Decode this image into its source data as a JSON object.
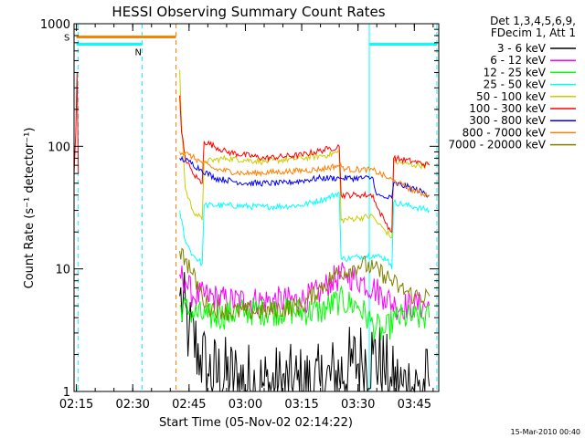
{
  "chart_data": {
    "type": "line",
    "title": "HESSI Observing Summary Count Rates",
    "xlabel": "Start Time (05-Nov-02 02:14:22)",
    "ylabel": "Count Rate (s⁻¹ detector⁻¹)",
    "ylog": true,
    "xlim": [
      "02:14:22",
      "03:51:30"
    ],
    "ylim": [
      1,
      1000
    ],
    "xticks": [
      "02:15",
      "02:30",
      "02:45",
      "03:00",
      "03:15",
      "03:30",
      "03:45"
    ],
    "yticks": [
      "1",
      "10",
      "100",
      "1000"
    ],
    "grid": false,
    "legend_position": "top-right",
    "legend_header": [
      "Det 1,3,4,5,6,9,",
      "FDecim 1, Att 1"
    ],
    "timestamp": "15-Mar-2010 00:40",
    "series": [
      {
        "name": "3 - 6 keV",
        "color": "#000000",
        "x": [
          "02:42:30",
          "02:45:00",
          "02:48:00",
          "02:50:00",
          "03:05:00",
          "03:20:00",
          "03:28:00",
          "03:31:00",
          "03:34:00",
          "03:37:00",
          "03:39:00",
          "03:42:00",
          "03:46:00",
          "03:49:00"
        ],
        "y": [
          6,
          3,
          2,
          1.4,
          1.1,
          1.1,
          1.6,
          1.8,
          2.0,
          1.5,
          1.1,
          1.1,
          1.1,
          1.1
        ]
      },
      {
        "name": "6 - 12 keV",
        "color": "#ff00ff",
        "x": [
          "02:42:30",
          "02:44:00",
          "02:46:00",
          "02:50:00",
          "02:55:00",
          "03:05:00",
          "03:15:00",
          "03:20:00",
          "03:23:00",
          "03:27:00",
          "03:31:00",
          "03:34:00",
          "03:37:00",
          "03:40:00",
          "03:45:00",
          "03:49:00"
        ],
        "y": [
          9,
          8,
          6,
          6,
          5.5,
          5.5,
          5.5,
          6.5,
          8,
          9,
          8,
          7,
          6,
          5,
          5,
          5
        ]
      },
      {
        "name": "12 - 25 keV",
        "color": "#00ff00",
        "x": [
          "02:42:30",
          "02:45:00",
          "02:50:00",
          "03:00:00",
          "03:10:00",
          "03:20:00",
          "03:25:00",
          "03:30:00",
          "03:34:00",
          "03:37:00",
          "03:40:00",
          "03:45:00",
          "03:49:00"
        ],
        "y": [
          5,
          4.5,
          4,
          4.5,
          4.5,
          4.5,
          5.5,
          5,
          3.5,
          3,
          4,
          4,
          4
        ]
      },
      {
        "name": "25 - 50 keV",
        "color": "#00ffff",
        "x": [
          "02:42:30",
          "02:44:00",
          "02:46:00",
          "02:48:30",
          "02:49:00",
          "02:55:00",
          "03:05:00",
          "03:15:00",
          "03:22:00",
          "03:25:00",
          "03:25:30",
          "03:30:00",
          "03:34:00",
          "03:38:00",
          "03:39:00",
          "03:39:30",
          "03:45:00",
          "03:49:00"
        ],
        "y": [
          30,
          17,
          13,
          11,
          33,
          33,
          32,
          33,
          38,
          42,
          12,
          12.5,
          13,
          12,
          10,
          35,
          32,
          30
        ]
      },
      {
        "name": "50 - 100 keV",
        "color": "#cccc00",
        "x": [
          "02:42:30",
          "02:43:00",
          "02:44:00",
          "02:46:00",
          "02:48:30",
          "02:49:00",
          "02:55:00",
          "03:05:00",
          "03:15:00",
          "03:22:00",
          "03:25:00",
          "03:25:30",
          "03:30:00",
          "03:34:00",
          "03:35:00",
          "03:37:00",
          "03:39:00",
          "03:39:30",
          "03:45:00",
          "03:49:00"
        ],
        "y": [
          420,
          150,
          45,
          30,
          25,
          75,
          80,
          75,
          80,
          85,
          90,
          25,
          26,
          27,
          24,
          21,
          18,
          75,
          70,
          70
        ]
      },
      {
        "name": "100 - 300 keV",
        "color": "#ff0000",
        "x": [
          "02:42:30",
          "02:43:00",
          "02:44:00",
          "02:46:00",
          "02:48:30",
          "02:49:00",
          "02:55:00",
          "03:05:00",
          "03:15:00",
          "03:22:00",
          "03:25:00",
          "03:25:30",
          "03:30:00",
          "03:34:00",
          "03:35:00",
          "03:37:00",
          "03:39:00",
          "03:39:30",
          "03:45:00",
          "03:49:00"
        ],
        "y": [
          260,
          130,
          80,
          60,
          50,
          110,
          90,
          80,
          85,
          95,
          100,
          40,
          40,
          40,
          32,
          25,
          20,
          80,
          75,
          70
        ]
      },
      {
        "name": "300 - 800 keV",
        "color": "#0000ff",
        "x": [
          "02:42:30",
          "02:45:00",
          "02:48:00",
          "02:52:00",
          "03:00:00",
          "03:10:00",
          "03:20:00",
          "03:25:00",
          "03:25:30",
          "03:34:00",
          "03:35:00",
          "03:37:00",
          "03:39:00",
          "03:39:30",
          "03:45:00",
          "03:49:00"
        ],
        "y": [
          80,
          75,
          65,
          55,
          50,
          50,
          55,
          55,
          55,
          55,
          40,
          38,
          38,
          50,
          45,
          40
        ]
      },
      {
        "name": "800 - 7000 keV",
        "color": "#ff8000",
        "x": [
          "02:42:30",
          "02:45:00",
          "02:48:00",
          "02:52:00",
          "03:00:00",
          "03:10:00",
          "03:20:00",
          "03:25:00",
          "03:27:00",
          "03:34:00",
          "03:38:00",
          "03:42:00",
          "03:46:00",
          "03:49:00"
        ],
        "y": [
          90,
          85,
          75,
          65,
          60,
          62,
          65,
          70,
          65,
          64,
          55,
          48,
          42,
          40
        ]
      },
      {
        "name": "7000 - 20000 keV",
        "color": "#808000",
        "x": [
          "02:42:30",
          "02:44:00",
          "02:46:00",
          "02:48:30",
          "02:50:00",
          "02:55:00",
          "03:05:00",
          "03:15:00",
          "03:20:00",
          "03:24:00",
          "03:28:00",
          "03:31:00",
          "03:34:00",
          "03:37:00",
          "03:41:00",
          "03:45:00",
          "03:49:00"
        ],
        "y": [
          14,
          12,
          9,
          6,
          5,
          4.5,
          4.5,
          5,
          7,
          9,
          10,
          11,
          10,
          9,
          7,
          6,
          6
        ]
      }
    ],
    "flag_bars": [
      {
        "label": "S",
        "color": "#ff8000",
        "value": 780,
        "segments": [
          [
            "02:15:00",
            "02:41:30"
          ]
        ]
      },
      {
        "label": "N",
        "color": "#00ffff",
        "value": 680,
        "segments": [
          [
            "02:15:00",
            "02:32:30"
          ],
          [
            "03:33:00",
            "03:51:00"
          ]
        ]
      }
    ],
    "vertical_markers": [
      {
        "color": "#00ffff",
        "style": "dashed",
        "x": "02:15:30"
      },
      {
        "color": "#00ffff",
        "style": "dashed",
        "x": "02:32:30"
      },
      {
        "color": "#ff8000",
        "style": "dashed",
        "x": "02:41:30"
      },
      {
        "color": "#00ffff",
        "style": "solid",
        "x": "03:33:00"
      },
      {
        "color": "#00ffff",
        "style": "dashed",
        "x": "03:51:00"
      }
    ],
    "early_spike": {
      "color": "#ff0000",
      "x": [
        "02:14:22",
        "02:14:50",
        "02:15:10",
        "02:15:30"
      ],
      "y": [
        60,
        130,
        400,
        60
      ]
    }
  }
}
